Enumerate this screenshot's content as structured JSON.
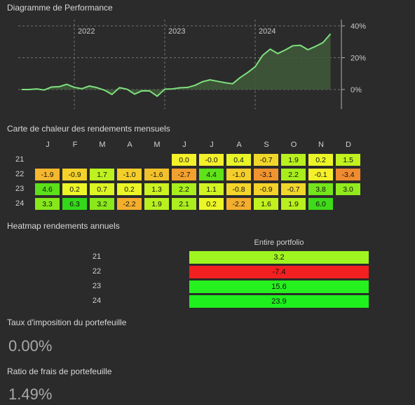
{
  "performance": {
    "title": "Diagramme de Performance",
    "chart_data": {
      "type": "area",
      "title": "Diagramme de Performance",
      "x_tick_labels": [
        "2022",
        "2023",
        "2024"
      ],
      "y_tick_labels": [
        "40%",
        "20%",
        "0%"
      ],
      "ylim": [
        -12,
        45
      ],
      "grid": true,
      "color": "#7ee07e",
      "series": [
        {
          "x": [
            "2021-06",
            "2021-07",
            "2021-08",
            "2021-09",
            "2021-10",
            "2021-11",
            "2021-12",
            "2022-01",
            "2022-02",
            "2022-03",
            "2022-04",
            "2022-05",
            "2022-06",
            "2022-07",
            "2022-08",
            "2022-09",
            "2022-10",
            "2022-11",
            "2022-12",
            "2023-01",
            "2023-02",
            "2023-03",
            "2023-04",
            "2023-05",
            "2023-06",
            "2023-07",
            "2023-08",
            "2023-09",
            "2023-10",
            "2023-11",
            "2023-12",
            "2024-01",
            "2024-02",
            "2024-03",
            "2024-04",
            "2024-05",
            "2024-06",
            "2024-07",
            "2024-08",
            "2024-09",
            "2024-10",
            "2024-11"
          ],
          "y": [
            0.0,
            0.0,
            0.4,
            -0.3,
            1.6,
            1.8,
            3.3,
            1.4,
            0.5,
            2.2,
            1.2,
            -0.4,
            -3.1,
            1.2,
            0.2,
            -2.9,
            -0.8,
            -0.9,
            -4.2,
            0.2,
            0.4,
            1.1,
            1.3,
            2.6,
            4.9,
            6.1,
            5.2,
            4.3,
            3.6,
            7.5,
            10.7,
            14.3,
            21.5,
            25.4,
            22.6,
            24.9,
            27.5,
            27.8,
            25.0,
            27.1,
            29.5,
            35.0
          ]
        }
      ]
    }
  },
  "monthly": {
    "title": "Carte de chaleur des rendements mensuels",
    "months": [
      "J",
      "F",
      "M",
      "A",
      "M",
      "J",
      "J",
      "A",
      "S",
      "O",
      "N",
      "D"
    ],
    "rows": [
      {
        "year": "21",
        "values": [
          null,
          null,
          null,
          null,
          null,
          "0.0",
          "-0.0",
          "0.4",
          "-0.7",
          "1.9",
          "0.2",
          "1.5"
        ],
        "colors": [
          null,
          null,
          null,
          null,
          null,
          "#f4f02a",
          "#f4f02a",
          "#e8f526",
          "#f2d72b",
          "#b9f11f",
          "#ecf627",
          "#c1f11f"
        ]
      },
      {
        "year": "22",
        "values": [
          "-1.9",
          "-0.9",
          "1.7",
          "-1.0",
          "-1.6",
          "-2.7",
          "4.4",
          "-1.0",
          "-3.1",
          "2.2",
          "-0.1",
          "-3.4"
        ],
        "colors": [
          "#f5b72d",
          "#f4d22a",
          "#bdf11f",
          "#f4ce2a",
          "#f3c22b",
          "#f3a12e",
          "#5fe219",
          "#f4ce2a",
          "#f1942f",
          "#a8ee1d",
          "#f4f02a",
          "#f08c30"
        ]
      },
      {
        "year": "23",
        "values": [
          "4.6",
          "0.2",
          "0.7",
          "0.2",
          "1.3",
          "2.2",
          "1.1",
          "-0.8",
          "-0.9",
          "-0.7",
          "3.8",
          "3.0"
        ],
        "colors": [
          "#5ce019",
          "#ecf627",
          "#dbf424",
          "#ecf627",
          "#cbf221",
          "#a8ee1d",
          "#d1f322",
          "#f4d62a",
          "#f4d22a",
          "#f2d72b",
          "#74e51a",
          "#91ea1c"
        ]
      },
      {
        "year": "24",
        "values": [
          "3.3",
          "6.3",
          "3.2",
          "-2.2",
          "1.9",
          "2.1",
          "0.2",
          "-2.2",
          "1.6",
          "1.9",
          "6.0",
          null
        ],
        "colors": [
          "#86e81b",
          "#33d818",
          "#8ae91b",
          "#f4ae2c",
          "#b9f11f",
          "#acee1e",
          "#ecf627",
          "#f4ae2c",
          "#c1f11f",
          "#b9f11f",
          "#3fda18",
          null
        ]
      }
    ]
  },
  "annual": {
    "title": "Heatmap rendements annuels",
    "column": "Entire portfolio",
    "rows": [
      {
        "year": "21",
        "value": "3.2",
        "color": "#9ff51f"
      },
      {
        "year": "22",
        "value": "-7.4",
        "color": "#f22020"
      },
      {
        "year": "23",
        "value": "15.6",
        "color": "#27f01f"
      },
      {
        "year": "24",
        "value": "23.9",
        "color": "#1ef01e"
      }
    ]
  },
  "tax": {
    "title": "Taux d'imposition du portefeuille",
    "value": "0.00%"
  },
  "fees": {
    "title": "Ratio de frais de portefeuille",
    "value": "1.49%"
  }
}
